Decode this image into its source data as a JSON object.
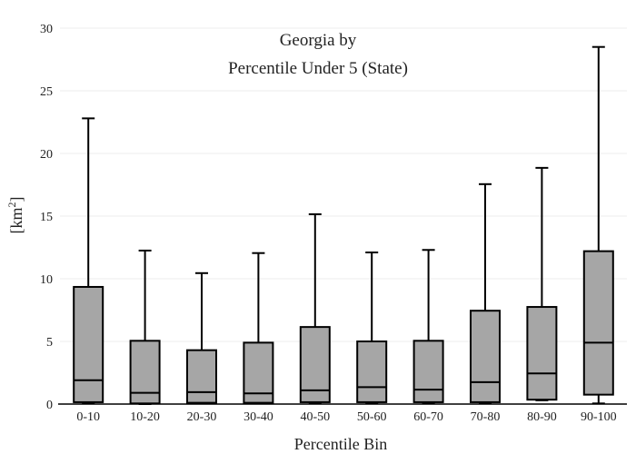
{
  "chart_data": {
    "type": "box",
    "title_line1": "Georgia  by",
    "title_line2": "Percentile Under 5 (State)",
    "xlabel": "Percentile Bin",
    "ylabel_base": "[km",
    "ylabel_sup": "2",
    "ylabel_close": "]",
    "ylim": [
      0,
      30
    ],
    "yticks": [
      0,
      5,
      10,
      15,
      20,
      25,
      30
    ],
    "grid": true,
    "categories": [
      "0-10",
      "10-20",
      "20-30",
      "30-40",
      "40-50",
      "50-60",
      "60-70",
      "70-80",
      "80-90",
      "90-100"
    ],
    "boxes": [
      {
        "category": "0-10",
        "min": 0.1,
        "q1": 0.15,
        "median": 1.9,
        "q3": 9.35,
        "max": 22.8
      },
      {
        "category": "10-20",
        "min": 0.0,
        "q1": 0.05,
        "median": 0.9,
        "q3": 5.05,
        "max": 12.25
      },
      {
        "category": "20-30",
        "min": 0.05,
        "q1": 0.1,
        "median": 0.95,
        "q3": 4.3,
        "max": 10.45
      },
      {
        "category": "30-40",
        "min": 0.05,
        "q1": 0.1,
        "median": 0.85,
        "q3": 4.9,
        "max": 12.05
      },
      {
        "category": "40-50",
        "min": 0.05,
        "q1": 0.15,
        "median": 1.1,
        "q3": 6.15,
        "max": 15.15
      },
      {
        "category": "50-60",
        "min": 0.05,
        "q1": 0.15,
        "median": 1.35,
        "q3": 5.0,
        "max": 12.1
      },
      {
        "category": "60-70",
        "min": 0.05,
        "q1": 0.15,
        "median": 1.15,
        "q3": 5.05,
        "max": 12.3
      },
      {
        "category": "70-80",
        "min": 0.05,
        "q1": 0.15,
        "median": 1.75,
        "q3": 7.45,
        "max": 17.55
      },
      {
        "category": "80-90",
        "min": 0.3,
        "q1": 0.35,
        "median": 2.45,
        "q3": 7.75,
        "max": 18.85
      },
      {
        "category": "90-100",
        "min": 0.05,
        "q1": 0.75,
        "median": 4.9,
        "q3": 12.2,
        "max": 28.5
      }
    ]
  }
}
